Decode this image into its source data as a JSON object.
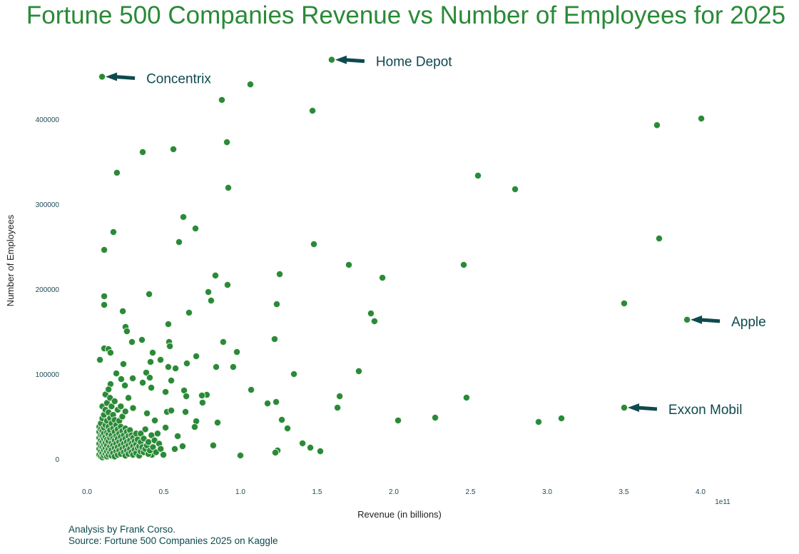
{
  "chart_data": {
    "type": "scatter",
    "title": "Fortune 500 Companies Revenue vs Number of Employees for 2025",
    "xlabel": "Revenue (in billions)",
    "ylabel": "Number of Employees",
    "x_offset_label": "1e11",
    "xlim": [
      -0.05,
      4.1
    ],
    "ylim": [
      -30000,
      480000
    ],
    "xticks": [
      "0.0",
      "0.5",
      "1.0",
      "1.5",
      "2.0",
      "2.5",
      "3.0",
      "3.5",
      "4.0"
    ],
    "yticks": [
      "0",
      "100000",
      "200000",
      "300000",
      "400000"
    ],
    "grid": false,
    "color": "#2a8a37",
    "annotation_color": "#0e4a4e",
    "annotations": [
      {
        "label": "Concentrix",
        "x": 0.098,
        "y": 450000
      },
      {
        "label": "Home Depot",
        "x": 1.595,
        "y": 470000
      },
      {
        "label": "Apple",
        "x": 3.912,
        "y": 164000
      },
      {
        "label": "Exxon Mobil",
        "x": 3.502,
        "y": 60500
      }
    ],
    "points": [
      [
        0.098,
        450000
      ],
      [
        1.595,
        470000
      ],
      [
        1.065,
        441000
      ],
      [
        0.879,
        422700
      ],
      [
        1.47,
        410000
      ],
      [
        4.005,
        400800
      ],
      [
        3.716,
        393000
      ],
      [
        0.912,
        373000
      ],
      [
        0.563,
        364700
      ],
      [
        0.363,
        361300
      ],
      [
        0.195,
        337000
      ],
      [
        2.549,
        333600
      ],
      [
        0.921,
        319300
      ],
      [
        2.791,
        317600
      ],
      [
        0.628,
        284900
      ],
      [
        0.707,
        271400
      ],
      [
        0.172,
        267200
      ],
      [
        3.73,
        259600
      ],
      [
        0.6,
        255400
      ],
      [
        1.479,
        252900
      ],
      [
        0.112,
        246200
      ],
      [
        1.707,
        228600
      ],
      [
        2.456,
        228600
      ],
      [
        0.837,
        216000
      ],
      [
        1.256,
        217600
      ],
      [
        1.926,
        213400
      ],
      [
        0.916,
        205000
      ],
      [
        0.791,
        196600
      ],
      [
        0.405,
        194100
      ],
      [
        0.112,
        191600
      ],
      [
        0.809,
        186500
      ],
      [
        1.237,
        182300
      ],
      [
        3.502,
        183200
      ],
      [
        0.112,
        181500
      ],
      [
        0.233,
        174000
      ],
      [
        1.851,
        171400
      ],
      [
        0.665,
        172300
      ],
      [
        1.874,
        162200
      ],
      [
        3.912,
        164000
      ],
      [
        0.53,
        158800
      ],
      [
        0.251,
        155500
      ],
      [
        0.26,
        150400
      ],
      [
        1.223,
        141200
      ],
      [
        0.358,
        140300
      ],
      [
        0.293,
        137800
      ],
      [
        0.535,
        137800
      ],
      [
        0.888,
        137800
      ],
      [
        0.54,
        132800
      ],
      [
        0.112,
        130200
      ],
      [
        0.14,
        129400
      ],
      [
        0.977,
        126000
      ],
      [
        0.428,
        125200
      ],
      [
        0.153,
        125200
      ],
      [
        0.712,
        121000
      ],
      [
        0.479,
        116800
      ],
      [
        0.084,
        116800
      ],
      [
        0.414,
        114300
      ],
      [
        0.651,
        112600
      ],
      [
        0.237,
        111800
      ],
      [
        0.53,
        108400
      ],
      [
        0.577,
        106700
      ],
      [
        0.842,
        108400
      ],
      [
        0.953,
        108400
      ],
      [
        1.772,
        103400
      ],
      [
        1.349,
        100000
      ],
      [
        0.191,
        100800
      ],
      [
        0.386,
        101700
      ],
      [
        0.409,
        95800
      ],
      [
        0.298,
        95000
      ],
      [
        0.549,
        92400
      ],
      [
        0.223,
        94100
      ],
      [
        0.363,
        89900
      ],
      [
        0.153,
        88200
      ],
      [
        0.247,
        86600
      ],
      [
        0.419,
        84000
      ],
      [
        1.07,
        81500
      ],
      [
        0.633,
        80700
      ],
      [
        0.512,
        79000
      ],
      [
        0.781,
        75600
      ],
      [
        0.749,
        74800
      ],
      [
        0.647,
        73900
      ],
      [
        1.647,
        73900
      ],
      [
        2.474,
        72300
      ],
      [
        1.233,
        67200
      ],
      [
        1.177,
        65500
      ],
      [
        0.753,
        66400
      ],
      [
        1.633,
        60500
      ],
      [
        3.502,
        60500
      ],
      [
        0.521,
        55500
      ],
      [
        0.642,
        55500
      ],
      [
        0.549,
        57100
      ],
      [
        0.391,
        53800
      ],
      [
        0.442,
        45400
      ],
      [
        1.27,
        46200
      ],
      [
        2.028,
        45400
      ],
      [
        2.27,
        48700
      ],
      [
        3.093,
        47900
      ],
      [
        2.944,
        43700
      ],
      [
        0.851,
        42900
      ],
      [
        0.712,
        44500
      ],
      [
        1.307,
        36100
      ],
      [
        0.702,
        37800
      ],
      [
        0.512,
        37000
      ],
      [
        0.591,
        26900
      ],
      [
        1.405,
        18500
      ],
      [
        1.456,
        13400
      ],
      [
        0.823,
        16000
      ],
      [
        0.623,
        15100
      ],
      [
        1.521,
        9200
      ],
      [
        1.0,
        4200
      ],
      [
        1.242,
        10100
      ],
      [
        1.228,
        7600
      ],
      [
        0.498,
        5000
      ],
      [
        0.423,
        5000
      ],
      [
        0.572,
        11800
      ],
      [
        0.08,
        5000
      ],
      [
        0.08,
        12000
      ],
      [
        0.08,
        18000
      ],
      [
        0.08,
        25000
      ],
      [
        0.08,
        32000
      ],
      [
        0.08,
        38000
      ],
      [
        0.09,
        3000
      ],
      [
        0.09,
        9000
      ],
      [
        0.09,
        15000
      ],
      [
        0.09,
        22000
      ],
      [
        0.09,
        28000
      ],
      [
        0.09,
        35000
      ],
      [
        0.09,
        42000
      ],
      [
        0.1,
        2000
      ],
      [
        0.1,
        7000
      ],
      [
        0.1,
        14000
      ],
      [
        0.1,
        20000
      ],
      [
        0.1,
        27000
      ],
      [
        0.1,
        33000
      ],
      [
        0.1,
        48000
      ],
      [
        0.1,
        62000
      ],
      [
        0.11,
        4000
      ],
      [
        0.11,
        11000
      ],
      [
        0.11,
        17000
      ],
      [
        0.11,
        24000
      ],
      [
        0.11,
        30000
      ],
      [
        0.11,
        37000
      ],
      [
        0.11,
        52000
      ],
      [
        0.12,
        6000
      ],
      [
        0.12,
        13000
      ],
      [
        0.12,
        19000
      ],
      [
        0.12,
        26000
      ],
      [
        0.12,
        40000
      ],
      [
        0.12,
        58000
      ],
      [
        0.12,
        76000
      ],
      [
        0.13,
        3000
      ],
      [
        0.13,
        9000
      ],
      [
        0.13,
        16000
      ],
      [
        0.13,
        23000
      ],
      [
        0.13,
        31000
      ],
      [
        0.13,
        45000
      ],
      [
        0.13,
        66000
      ],
      [
        0.14,
        5000
      ],
      [
        0.14,
        12000
      ],
      [
        0.14,
        21000
      ],
      [
        0.14,
        29000
      ],
      [
        0.14,
        38000
      ],
      [
        0.14,
        55000
      ],
      [
        0.14,
        82000
      ],
      [
        0.15,
        8000
      ],
      [
        0.15,
        15000
      ],
      [
        0.15,
        25000
      ],
      [
        0.15,
        34000
      ],
      [
        0.15,
        48000
      ],
      [
        0.15,
        72000
      ],
      [
        0.16,
        4000
      ],
      [
        0.16,
        11000
      ],
      [
        0.16,
        19000
      ],
      [
        0.16,
        28000
      ],
      [
        0.16,
        42000
      ],
      [
        0.16,
        62000
      ],
      [
        0.17,
        7000
      ],
      [
        0.17,
        16000
      ],
      [
        0.17,
        24000
      ],
      [
        0.17,
        36000
      ],
      [
        0.17,
        52000
      ],
      [
        0.18,
        3000
      ],
      [
        0.18,
        13000
      ],
      [
        0.18,
        22000
      ],
      [
        0.18,
        32000
      ],
      [
        0.18,
        46000
      ],
      [
        0.18,
        68000
      ],
      [
        0.19,
        9000
      ],
      [
        0.19,
        18000
      ],
      [
        0.19,
        27000
      ],
      [
        0.19,
        40000
      ],
      [
        0.2,
        5000
      ],
      [
        0.2,
        14000
      ],
      [
        0.2,
        24000
      ],
      [
        0.2,
        35000
      ],
      [
        0.2,
        58000
      ],
      [
        0.21,
        10000
      ],
      [
        0.21,
        20000
      ],
      [
        0.21,
        30000
      ],
      [
        0.21,
        45000
      ],
      [
        0.22,
        6000
      ],
      [
        0.22,
        16000
      ],
      [
        0.22,
        26000
      ],
      [
        0.22,
        38000
      ],
      [
        0.22,
        62000
      ],
      [
        0.23,
        12000
      ],
      [
        0.23,
        22000
      ],
      [
        0.23,
        33000
      ],
      [
        0.23,
        50000
      ],
      [
        0.24,
        8000
      ],
      [
        0.24,
        18000
      ],
      [
        0.24,
        28000
      ],
      [
        0.25,
        4000
      ],
      [
        0.25,
        14000
      ],
      [
        0.25,
        24000
      ],
      [
        0.25,
        36000
      ],
      [
        0.25,
        56000
      ],
      [
        0.26,
        10000
      ],
      [
        0.26,
        20000
      ],
      [
        0.26,
        32000
      ],
      [
        0.27,
        6000
      ],
      [
        0.27,
        16000
      ],
      [
        0.27,
        27000
      ],
      [
        0.27,
        72000
      ],
      [
        0.28,
        12000
      ],
      [
        0.28,
        22000
      ],
      [
        0.28,
        34000
      ],
      [
        0.29,
        8000
      ],
      [
        0.29,
        18000
      ],
      [
        0.29,
        28000
      ],
      [
        0.3,
        5000
      ],
      [
        0.3,
        15000
      ],
      [
        0.3,
        25000
      ],
      [
        0.3,
        60000
      ],
      [
        0.31,
        11000
      ],
      [
        0.31,
        21000
      ],
      [
        0.32,
        7000
      ],
      [
        0.32,
        17000
      ],
      [
        0.32,
        30000
      ],
      [
        0.33,
        13000
      ],
      [
        0.33,
        23000
      ],
      [
        0.34,
        4000
      ],
      [
        0.34,
        15000
      ],
      [
        0.35,
        9000
      ],
      [
        0.35,
        20000
      ],
      [
        0.35,
        30000
      ],
      [
        0.36,
        14000
      ],
      [
        0.37,
        8000
      ],
      [
        0.37,
        24000
      ],
      [
        0.38,
        12000
      ],
      [
        0.38,
        35000
      ],
      [
        0.39,
        16000
      ],
      [
        0.4,
        6000
      ],
      [
        0.4,
        20000
      ],
      [
        0.41,
        10000
      ],
      [
        0.42,
        28000
      ],
      [
        0.43,
        14000
      ],
      [
        0.44,
        22000
      ],
      [
        0.45,
        8000
      ],
      [
        0.46,
        30000
      ],
      [
        0.47,
        18000
      ],
      [
        0.48,
        12000
      ]
    ]
  },
  "caption": {
    "line1": "Analysis by Frank Corso.",
    "line2": "Source: Fortune 500 Companies 2025 on Kaggle"
  }
}
